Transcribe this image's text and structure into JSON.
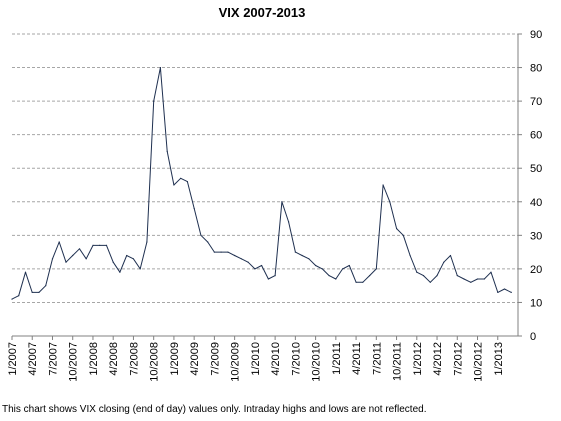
{
  "chart_data": {
    "type": "line",
    "title": "VIX 2007-2013",
    "xlabel": "",
    "ylabel": "",
    "ylim": [
      0,
      90
    ],
    "y_ticks": [
      "0",
      "10",
      "20",
      "30",
      "40",
      "50",
      "60",
      "70",
      "80",
      "90"
    ],
    "y_axis_side": "right",
    "x_ticks": [
      "1/2007",
      "4/2007",
      "7/2007",
      "10/2007",
      "1/2008",
      "4/2008",
      "7/2008",
      "10/2008",
      "1/2009",
      "4/2009",
      "7/2009",
      "10/2009",
      "1/2010",
      "4/2010",
      "7/2010",
      "10/2010",
      "1/2011",
      "4/2011",
      "7/2011",
      "10/2011",
      "1/2012",
      "4/2012",
      "7/2012",
      "10/2012",
      "1/2013"
    ],
    "grid": true,
    "legend": "none",
    "line_color": "#1f3050",
    "series": [
      {
        "x": [
          "2007-01",
          "2007-02",
          "2007-03",
          "2007-04",
          "2007-05",
          "2007-06",
          "2007-07",
          "2007-08",
          "2007-09",
          "2007-10",
          "2007-11",
          "2007-12",
          "2008-01",
          "2008-02",
          "2008-03",
          "2008-04",
          "2008-05",
          "2008-06",
          "2008-07",
          "2008-08",
          "2008-09",
          "2008-10",
          "2008-11",
          "2008-12",
          "2009-01",
          "2009-02",
          "2009-03",
          "2009-04",
          "2009-05",
          "2009-06",
          "2009-07",
          "2009-08",
          "2009-09",
          "2009-10",
          "2009-11",
          "2009-12",
          "2010-01",
          "2010-02",
          "2010-03",
          "2010-04",
          "2010-05",
          "2010-06",
          "2010-07",
          "2010-08",
          "2010-09",
          "2010-10",
          "2010-11",
          "2010-12",
          "2011-01",
          "2011-02",
          "2011-03",
          "2011-04",
          "2011-05",
          "2011-06",
          "2011-07",
          "2011-08",
          "2011-09",
          "2011-10",
          "2011-11",
          "2011-12",
          "2012-01",
          "2012-02",
          "2012-03",
          "2012-04",
          "2012-05",
          "2012-06",
          "2012-07",
          "2012-08",
          "2012-09",
          "2012-10",
          "2012-11",
          "2012-12",
          "2013-01",
          "2013-02",
          "2013-03"
        ],
        "values": [
          11,
          12,
          19,
          13,
          13,
          15,
          23,
          28,
          22,
          24,
          26,
          23,
          27,
          27,
          27,
          22,
          19,
          24,
          23,
          20,
          28,
          70,
          80,
          55,
          45,
          47,
          46,
          38,
          30,
          28,
          25,
          25,
          25,
          24,
          23,
          22,
          20,
          21,
          17,
          18,
          40,
          34,
          25,
          24,
          23,
          21,
          20,
          18,
          17,
          20,
          21,
          16,
          16,
          18,
          20,
          45,
          40,
          32,
          30,
          24,
          19,
          18,
          16,
          18,
          22,
          24,
          18,
          17,
          16,
          17,
          17,
          19,
          13,
          14,
          13
        ]
      }
    ]
  },
  "footnote": "This chart shows VIX closing (end of day) values only. Intraday highs and lows are not reflected."
}
